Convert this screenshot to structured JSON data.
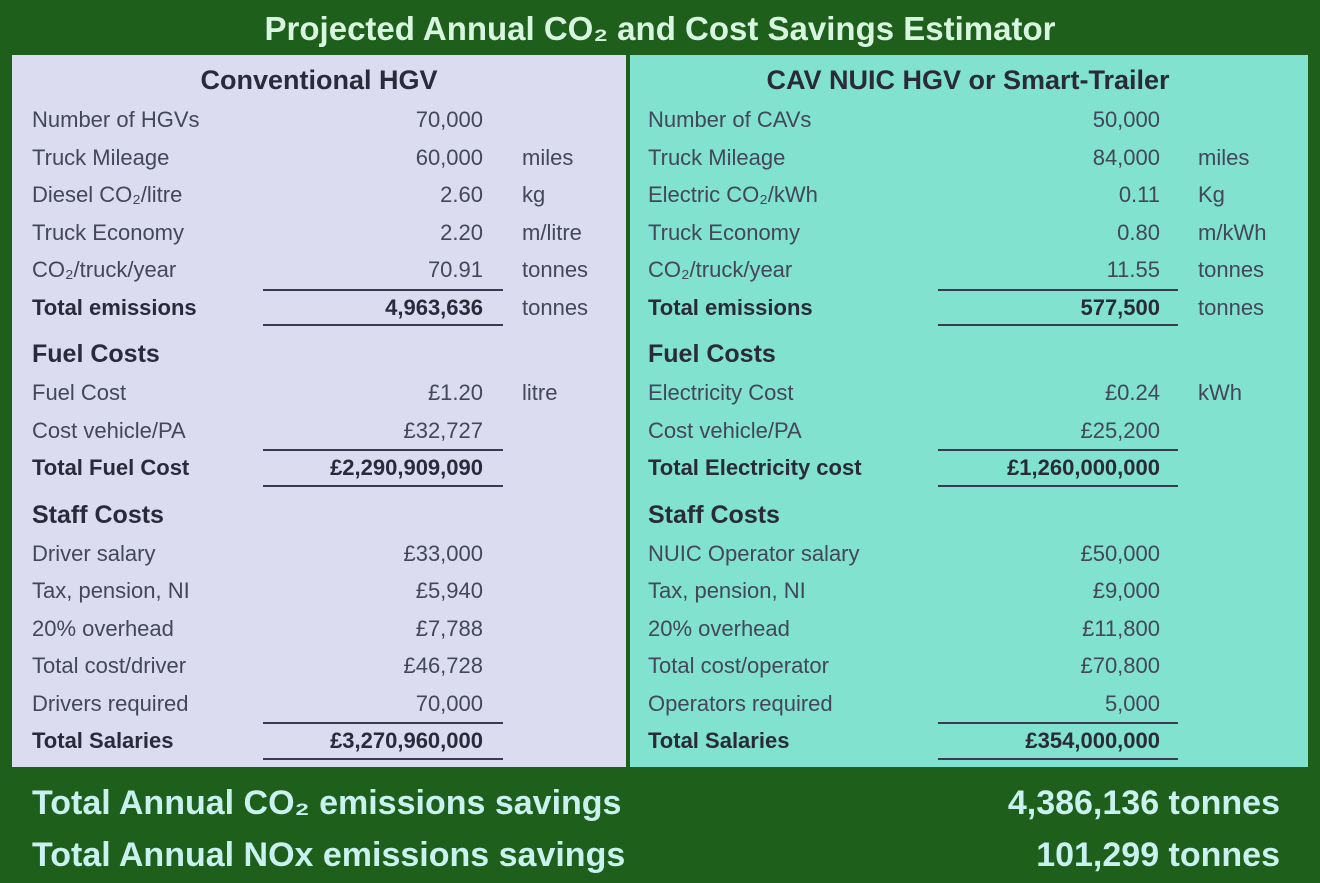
{
  "title": "Projected Annual CO₂ and Cost Savings Estimator",
  "panels": [
    {
      "heading": "Conventional HGV",
      "sections": [
        {
          "rows": [
            [
              "Number of HGVs",
              "70,000"
            ],
            [
              "Truck Mileage",
              "60,000",
              "miles"
            ],
            [
              "Diesel CO₂/litre",
              "2.60",
              "kg"
            ],
            [
              "Truck Economy",
              "2.20",
              "m/litre"
            ],
            [
              "CO₂/truck/year",
              "70.91",
              "tonnes"
            ]
          ],
          "total": [
            "Total emissions",
            "4,963,636",
            "tonnes"
          ]
        },
        {
          "heading": "Fuel Costs",
          "rows": [
            [
              "Fuel Cost",
              "£1.20",
              "litre"
            ],
            [
              "Cost vehicle/PA",
              "£32,727"
            ]
          ],
          "total": [
            "Total Fuel Cost",
            "£2,290,909,090"
          ]
        },
        {
          "heading": "Staff Costs",
          "rows": [
            [
              "Driver salary",
              "£33,000"
            ],
            [
              "Tax, pension, NI",
              "£5,940"
            ],
            [
              "20% overhead",
              "£7,788"
            ],
            [
              "Total cost/driver",
              "£46,728"
            ],
            [
              "Drivers required",
              "70,000"
            ]
          ],
          "total": [
            "Total Salaries",
            "£3,270,960,000"
          ]
        }
      ]
    },
    {
      "heading": "CAV NUIC HGV or Smart-Trailer",
      "sections": [
        {
          "rows": [
            [
              "Number of CAVs",
              "50,000"
            ],
            [
              "Truck Mileage",
              "84,000",
              "miles"
            ],
            [
              "Electric CO₂/kWh",
              "0.11",
              "Kg"
            ],
            [
              "Truck Economy",
              "0.80",
              "m/kWh"
            ],
            [
              "CO₂/truck/year",
              "11.55",
              "tonnes"
            ]
          ],
          "total": [
            "Total emissions",
            "577,500",
            "tonnes"
          ]
        },
        {
          "heading": "Fuel Costs",
          "rows": [
            [
              "Electricity Cost",
              "£0.24",
              "kWh"
            ],
            [
              "Cost vehicle/PA",
              "£25,200"
            ]
          ],
          "total": [
            "Total Electricity cost",
            "£1,260,000,000"
          ]
        },
        {
          "heading": "Staff Costs",
          "rows": [
            [
              "NUIC Operator salary",
              "£50,000"
            ],
            [
              "Tax, pension, NI",
              "£9,000"
            ],
            [
              "20% overhead",
              "£11,800"
            ],
            [
              "Total cost/operator",
              "£70,800"
            ],
            [
              "Operators required",
              "5,000"
            ]
          ],
          "total": [
            "Total Salaries",
            "£354,000,000"
          ]
        }
      ]
    }
  ],
  "summary": [
    [
      "Total Annual CO₂ emissions savings",
      "4,386,136 tonnes"
    ],
    [
      "Total Annual NOx emissions savings",
      "101,299 tonnes"
    ]
  ]
}
